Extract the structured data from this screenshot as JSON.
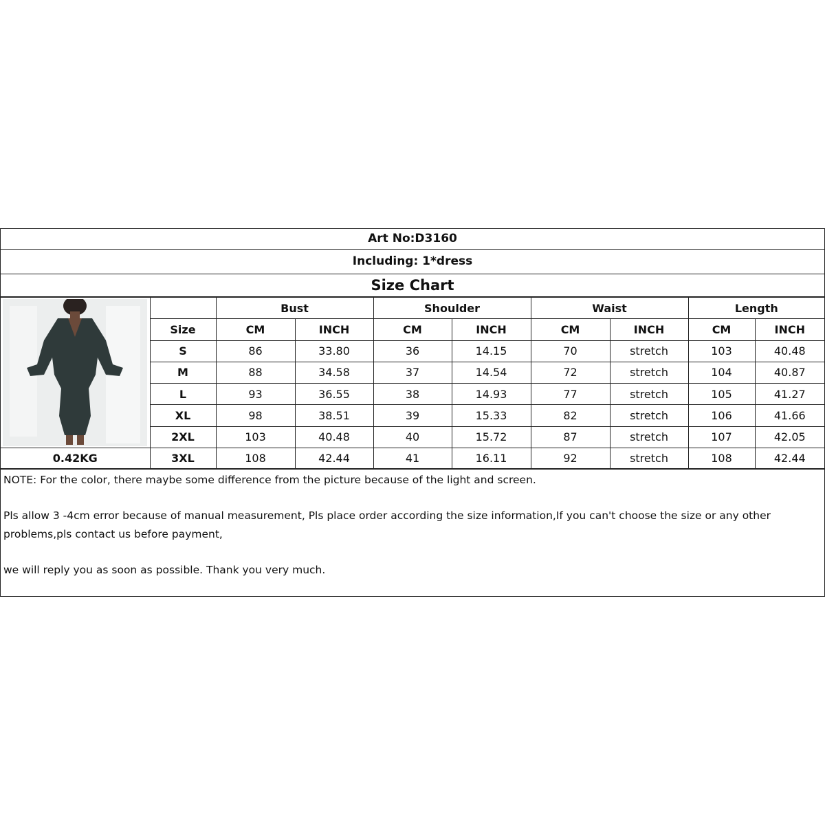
{
  "art_no": "Art No:D3160",
  "including": "Including:  1*dress",
  "title": "Size Chart",
  "weight": "0.42KG",
  "groups": [
    "Bust",
    "Shoulder",
    "Waist",
    "Length"
  ],
  "size_header": "Size",
  "units": [
    "CM",
    "INCH",
    "CM",
    "INCH",
    "CM",
    "INCH",
    "CM",
    "INCH"
  ],
  "rows": [
    {
      "size": "S",
      "values": [
        "86",
        "33.80",
        "36",
        "14.15",
        "70",
        "stretch",
        "103",
        "40.48"
      ]
    },
    {
      "size": "M",
      "values": [
        "88",
        "34.58",
        "37",
        "14.54",
        "72",
        "stretch",
        "104",
        "40.87"
      ]
    },
    {
      "size": "L",
      "values": [
        "93",
        "36.55",
        "38",
        "14.93",
        "77",
        "stretch",
        "105",
        "41.27"
      ]
    },
    {
      "size": "XL",
      "values": [
        "98",
        "38.51",
        "39",
        "15.33",
        "82",
        "stretch",
        "106",
        "41.66"
      ]
    },
    {
      "size": "2XL",
      "values": [
        "103",
        "40.48",
        "40",
        "15.72",
        "87",
        "stretch",
        "107",
        "42.05"
      ]
    },
    {
      "size": "3XL",
      "values": [
        "108",
        "42.44",
        "41",
        "16.11",
        "92",
        "stretch",
        "108",
        "42.44"
      ]
    }
  ],
  "notes": [
    "NOTE:  For the color, there maybe some difference from the picture because of the light and screen.",
    "Pls allow 3 -4cm error because of manual measurement, Pls place order according the size information,If you can't choose the size or any other problems,pls contact us before payment,",
    "we will reply you as soon as possible. Thank you very much."
  ],
  "colors": {
    "dress": "#2f3a3a",
    "border": "#222222"
  }
}
